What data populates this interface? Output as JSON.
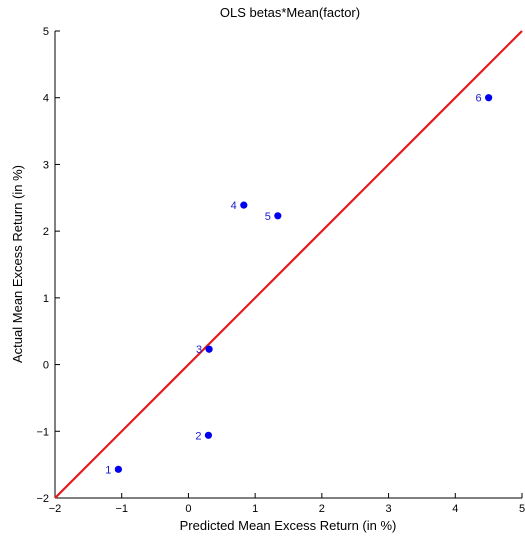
{
  "chart_data": {
    "type": "scatter",
    "title": "OLS betas*Mean(factor)",
    "xlabel": "Predicted Mean Excess Return (in %)",
    "ylabel": "Actual Mean Excess Return (in %)",
    "xlim": [
      -2,
      5
    ],
    "ylim": [
      -2,
      5
    ],
    "xticks": [
      -2,
      -1,
      0,
      1,
      2,
      3,
      4,
      5
    ],
    "yticks": [
      -2,
      -1,
      0,
      1,
      2,
      3,
      4,
      5
    ],
    "xtick_labels": [
      "−2",
      "−1",
      "0",
      "1",
      "2",
      "3",
      "4",
      "5"
    ],
    "ytick_labels": [
      "−2",
      "−1",
      "0",
      "1",
      "2",
      "3",
      "4",
      "5"
    ],
    "points": [
      {
        "label": "1",
        "x": -1.05,
        "y": -1.57
      },
      {
        "label": "2",
        "x": 0.3,
        "y": -1.06
      },
      {
        "label": "3",
        "x": 0.31,
        "y": 0.23
      },
      {
        "label": "4",
        "x": 0.83,
        "y": 2.39
      },
      {
        "label": "5",
        "x": 1.34,
        "y": 2.23
      },
      {
        "label": "6",
        "x": 4.5,
        "y": 4.0
      }
    ],
    "reference_line": {
      "from": [
        -2,
        -2
      ],
      "to": [
        5,
        5
      ],
      "color": "#e41a1c"
    },
    "point_color": "#0000ee",
    "label_color": "#1a1acc",
    "grid": false
  }
}
